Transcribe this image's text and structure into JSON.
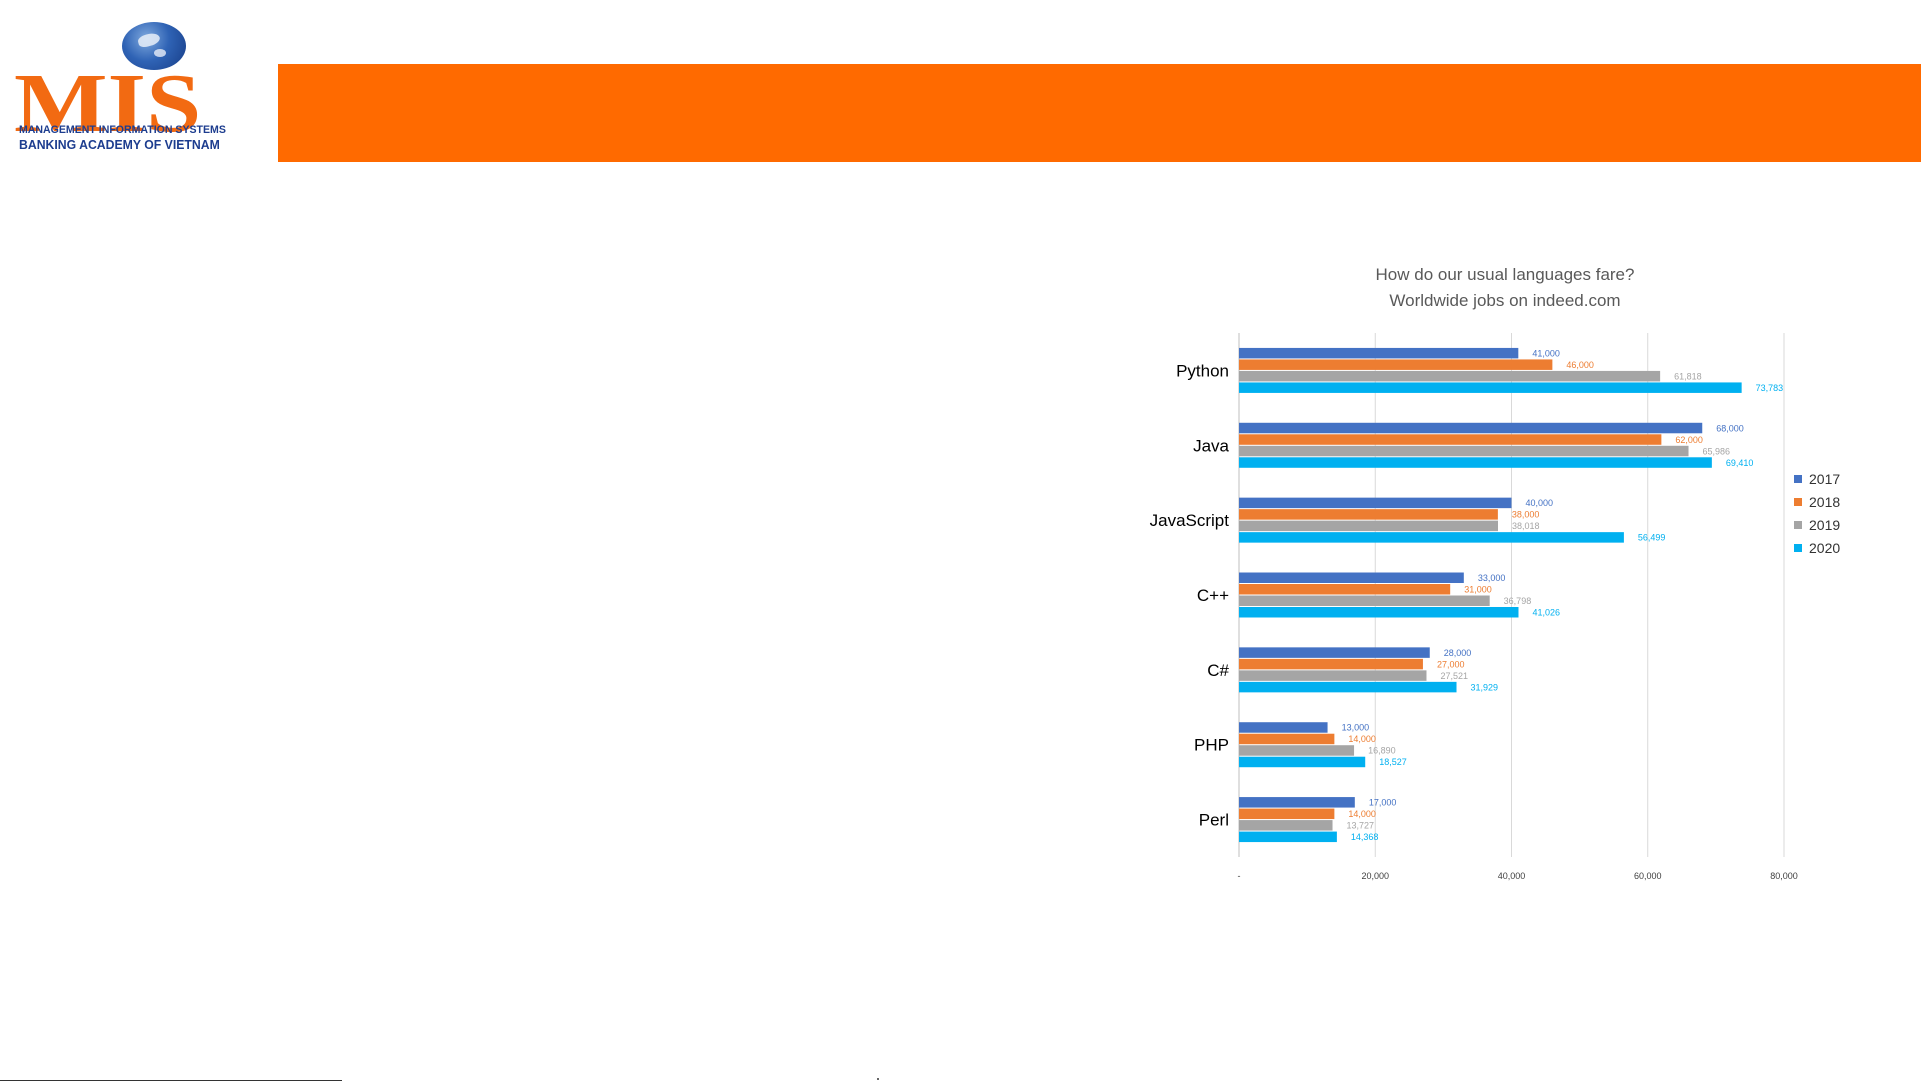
{
  "logo": {
    "mark": "MIS",
    "line1": "MANAGEMENT INFORMATION SYSTEMS",
    "line2": "BANKING ACADEMY OF VIETNAM"
  },
  "colors": {
    "banner": "#ff6a00",
    "logo_orange": "#f26a12",
    "logo_blue": "#1d3d8f"
  },
  "chart_data": {
    "type": "bar",
    "orientation": "horizontal",
    "title": "How do our usual languages fare?",
    "subtitle": "Worldwide jobs on indeed.com",
    "categories": [
      "Python",
      "Java",
      "JavaScript",
      "C++",
      "C#",
      "PHP",
      "Perl"
    ],
    "series": [
      {
        "name": "2017",
        "color": "#4472c4",
        "values": [
          41000,
          68000,
          40000,
          33000,
          28000,
          13000,
          17000
        ],
        "labels": [
          "41,000",
          "68,000",
          "40,000",
          "33,000",
          "28,000",
          "13,000",
          "17,000"
        ]
      },
      {
        "name": "2018",
        "color": "#ed7d31",
        "values": [
          46000,
          62000,
          38000,
          31000,
          27000,
          14000,
          14000
        ],
        "labels": [
          "46,000",
          "62,000",
          "38,000",
          "31,000",
          "27,000",
          "14,000",
          "14,000"
        ]
      },
      {
        "name": "2019",
        "color": "#a5a5a5",
        "values": [
          61818,
          65986,
          38018,
          36798,
          27521,
          16890,
          13727
        ],
        "labels": [
          "61,818",
          "65,986",
          "38,018",
          "36,798",
          "27,521",
          "16,890",
          "13,727"
        ]
      },
      {
        "name": "2020",
        "color": "#00b0f0",
        "values": [
          73783,
          69410,
          56499,
          41026,
          31929,
          18527,
          14368
        ],
        "labels": [
          "73,783",
          "69,410",
          "56,499",
          "41,026",
          "31,929",
          "18,527",
          "14,368"
        ]
      }
    ],
    "xlim": [
      0,
      80000
    ],
    "xticks": [
      0,
      20000,
      40000,
      60000,
      80000
    ],
    "xtick_labels": [
      "-",
      "20,000",
      "40,000",
      "60,000",
      "80,000"
    ],
    "grid": "vertical",
    "legend": "right"
  }
}
